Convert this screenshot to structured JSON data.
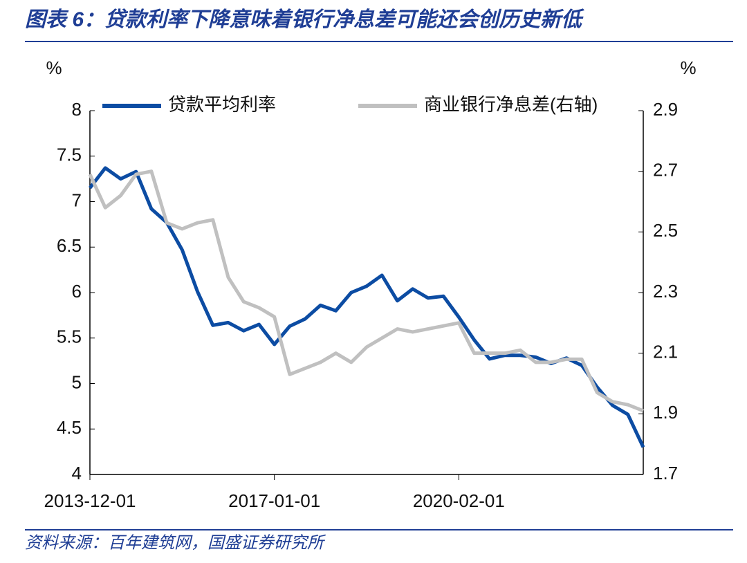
{
  "title": "图表 6：贷款利率下降意味着银行净息差可能还会创历史新低",
  "source": "资料来源：百年建筑网，国盛证券研究所",
  "chart_data": {
    "type": "line",
    "y_label": "%",
    "y2_label": "%",
    "categories": [
      "2013-12-01",
      null,
      null,
      null,
      null,
      null,
      null,
      null,
      null,
      null,
      null,
      null,
      "2017-01-01",
      null,
      null,
      null,
      null,
      null,
      null,
      null,
      null,
      null,
      null,
      null,
      "2020-02-01",
      null,
      null,
      null,
      null,
      null,
      null,
      null,
      null,
      null,
      null,
      null,
      null
    ],
    "series": [
      {
        "name": "贷款平均利率",
        "color": "#0c4ca3",
        "values": [
          7.15,
          7.37,
          7.25,
          7.33,
          6.92,
          6.77,
          6.47,
          6.01,
          5.64,
          5.67,
          5.58,
          5.65,
          5.43,
          5.63,
          5.71,
          5.86,
          5.8,
          6.0,
          6.07,
          6.19,
          5.91,
          6.04,
          5.94,
          5.96,
          5.73,
          5.48,
          5.27,
          5.31,
          5.31,
          5.29,
          5.22,
          5.28,
          5.2,
          4.96,
          4.76,
          4.66,
          4.3
        ]
      },
      {
        "name": "商业银行净息差(右轴)",
        "color": "#c0c0c0",
        "axis": "y2",
        "values": [
          2.69,
          2.58,
          2.62,
          2.69,
          2.7,
          2.53,
          2.51,
          2.53,
          2.54,
          2.35,
          2.27,
          2.25,
          2.22,
          2.03,
          2.05,
          2.07,
          2.1,
          2.07,
          2.12,
          2.15,
          2.18,
          2.17,
          2.18,
          2.19,
          2.2,
          2.1,
          2.1,
          2.1,
          2.11,
          2.07,
          2.07,
          2.08,
          2.08,
          1.97,
          1.94,
          1.93,
          1.91
        ]
      }
    ],
    "ylim": [
      4,
      8
    ],
    "yticks": [
      4,
      4.5,
      5,
      5.5,
      6,
      6.5,
      7,
      7.5,
      8
    ],
    "y2lim": [
      1.7,
      2.9
    ],
    "y2ticks": [
      1.7,
      1.9,
      2.1,
      2.3,
      2.5,
      2.7,
      2.9
    ],
    "grid": false,
    "legend": "top"
  }
}
